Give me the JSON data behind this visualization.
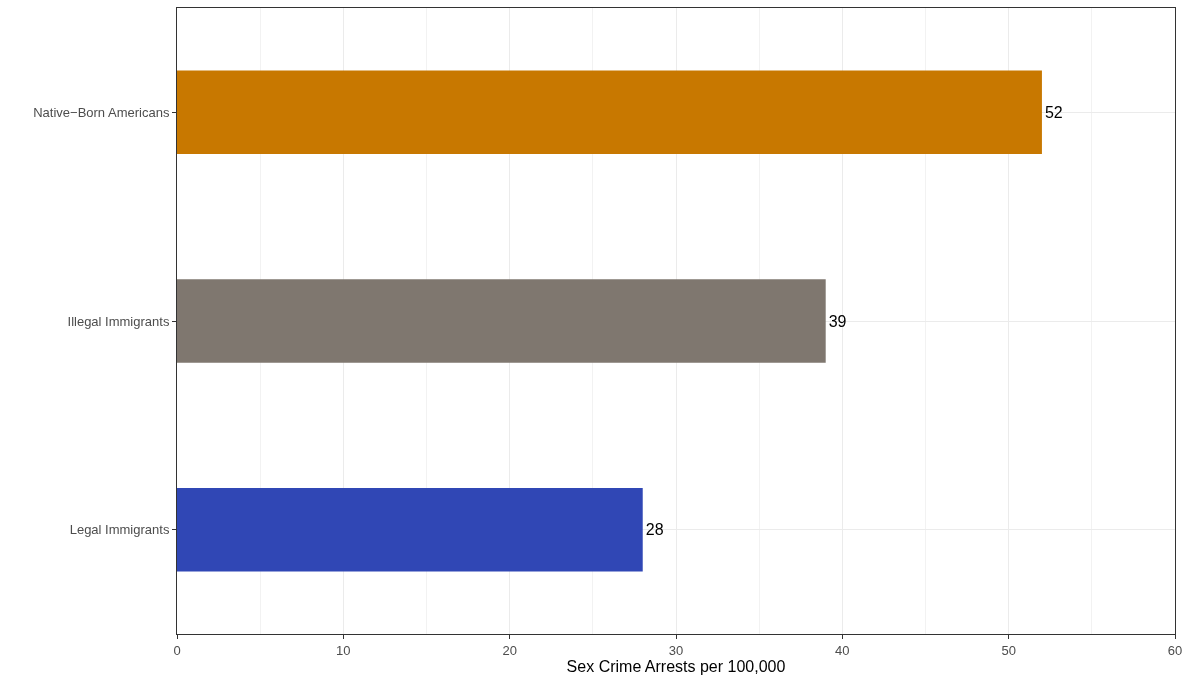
{
  "chart_data": {
    "type": "bar",
    "orientation": "horizontal",
    "xlabel": "Sex Crime Arrests per 100,000",
    "categories": [
      "Native−Born Americans",
      "Illegal Immigrants",
      "Legal Immigrants"
    ],
    "values": [
      52,
      39,
      28
    ],
    "colors": [
      "#c87800",
      "#7f776f",
      "#3047b5"
    ],
    "xlim": [
      0,
      60
    ],
    "xticks": [
      0,
      10,
      20,
      30,
      40,
      50,
      60
    ],
    "grid": true,
    "data_labels": true
  }
}
